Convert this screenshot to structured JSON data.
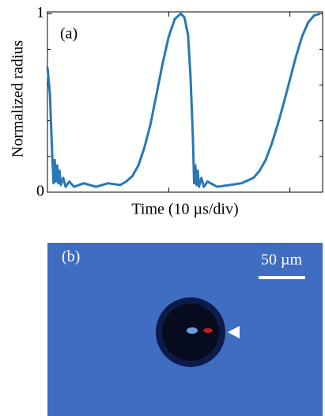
{
  "chart_data": {
    "type": "line",
    "panel_label": "(a)",
    "y_label": "Normalized radius",
    "x_label": "Time (10 µs/div)",
    "x": [
      0,
      0.02,
      0.04,
      0.05,
      0.06,
      0.07,
      0.08,
      0.09,
      0.1,
      0.11,
      0.13,
      0.15,
      0.18,
      0.22,
      0.3,
      0.4,
      0.5,
      0.6,
      0.65,
      0.7,
      0.75,
      0.8,
      0.85,
      0.9,
      0.95,
      1.0,
      1.05,
      1.1,
      1.13,
      1.16,
      1.18,
      1.2,
      1.21,
      1.22,
      1.23,
      1.24,
      1.25,
      1.27,
      1.29,
      1.32,
      1.4,
      1.5,
      1.6,
      1.7,
      1.75,
      1.8,
      1.85,
      1.9,
      1.95,
      2.0,
      2.05,
      2.1,
      2.15,
      2.2,
      2.25
    ],
    "series": [
      {
        "color": "#2878b5",
        "values": [
          0.7,
          0.55,
          0.2,
          0.05,
          0.18,
          0.06,
          0.15,
          0.05,
          0.12,
          0.04,
          0.08,
          0.03,
          0.06,
          0.03,
          0.05,
          0.03,
          0.05,
          0.04,
          0.06,
          0.09,
          0.15,
          0.25,
          0.38,
          0.55,
          0.72,
          0.87,
          0.97,
          1.0,
          0.98,
          0.88,
          0.65,
          0.3,
          0.05,
          0.15,
          0.04,
          0.12,
          0.03,
          0.08,
          0.03,
          0.06,
          0.03,
          0.04,
          0.05,
          0.08,
          0.12,
          0.18,
          0.27,
          0.38,
          0.5,
          0.63,
          0.76,
          0.87,
          0.95,
          0.99,
          1.0
        ]
      }
    ],
    "xlim": [
      0,
      2.27
    ],
    "xtick_marks": [
      1,
      2
    ],
    "ylim": [
      0,
      1.01
    ],
    "yticks": [
      0,
      1
    ],
    "yminor": [
      0.2,
      0.4,
      0.6,
      0.8
    ]
  },
  "image_panel": {
    "label": "(b)",
    "scale_bar": "50 µm"
  }
}
